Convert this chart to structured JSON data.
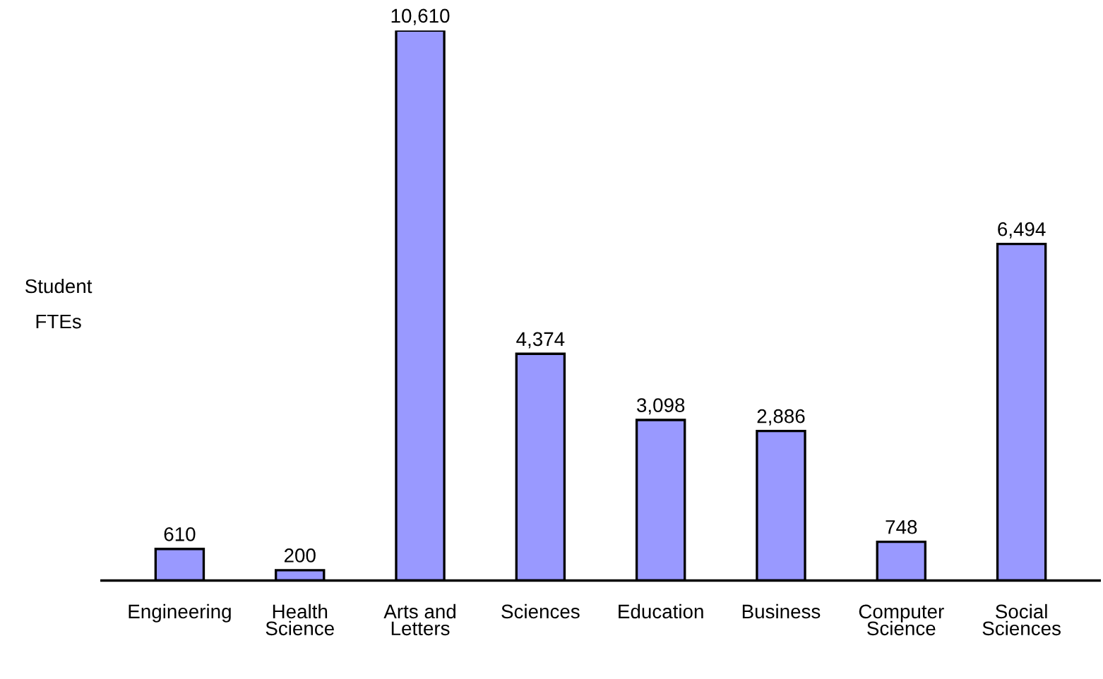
{
  "chart_data": {
    "type": "bar",
    "ylabel": "Student\nFTEs",
    "categories": [
      "Engineering",
      "Health\nScience",
      "Arts and\nLetters",
      "Sciences",
      "Education",
      "Business",
      "Computer\nScience",
      "Social\nSciences"
    ],
    "values": [
      610,
      200,
      10610,
      4374,
      3098,
      2886,
      748,
      6494
    ],
    "value_labels": [
      "610",
      "200",
      "10,610",
      "4,374",
      "3,098",
      "2,886",
      "748",
      "6,494"
    ],
    "color": "#9999ff",
    "ylim": [
      0,
      10610
    ],
    "grid": false,
    "legend": false
  }
}
